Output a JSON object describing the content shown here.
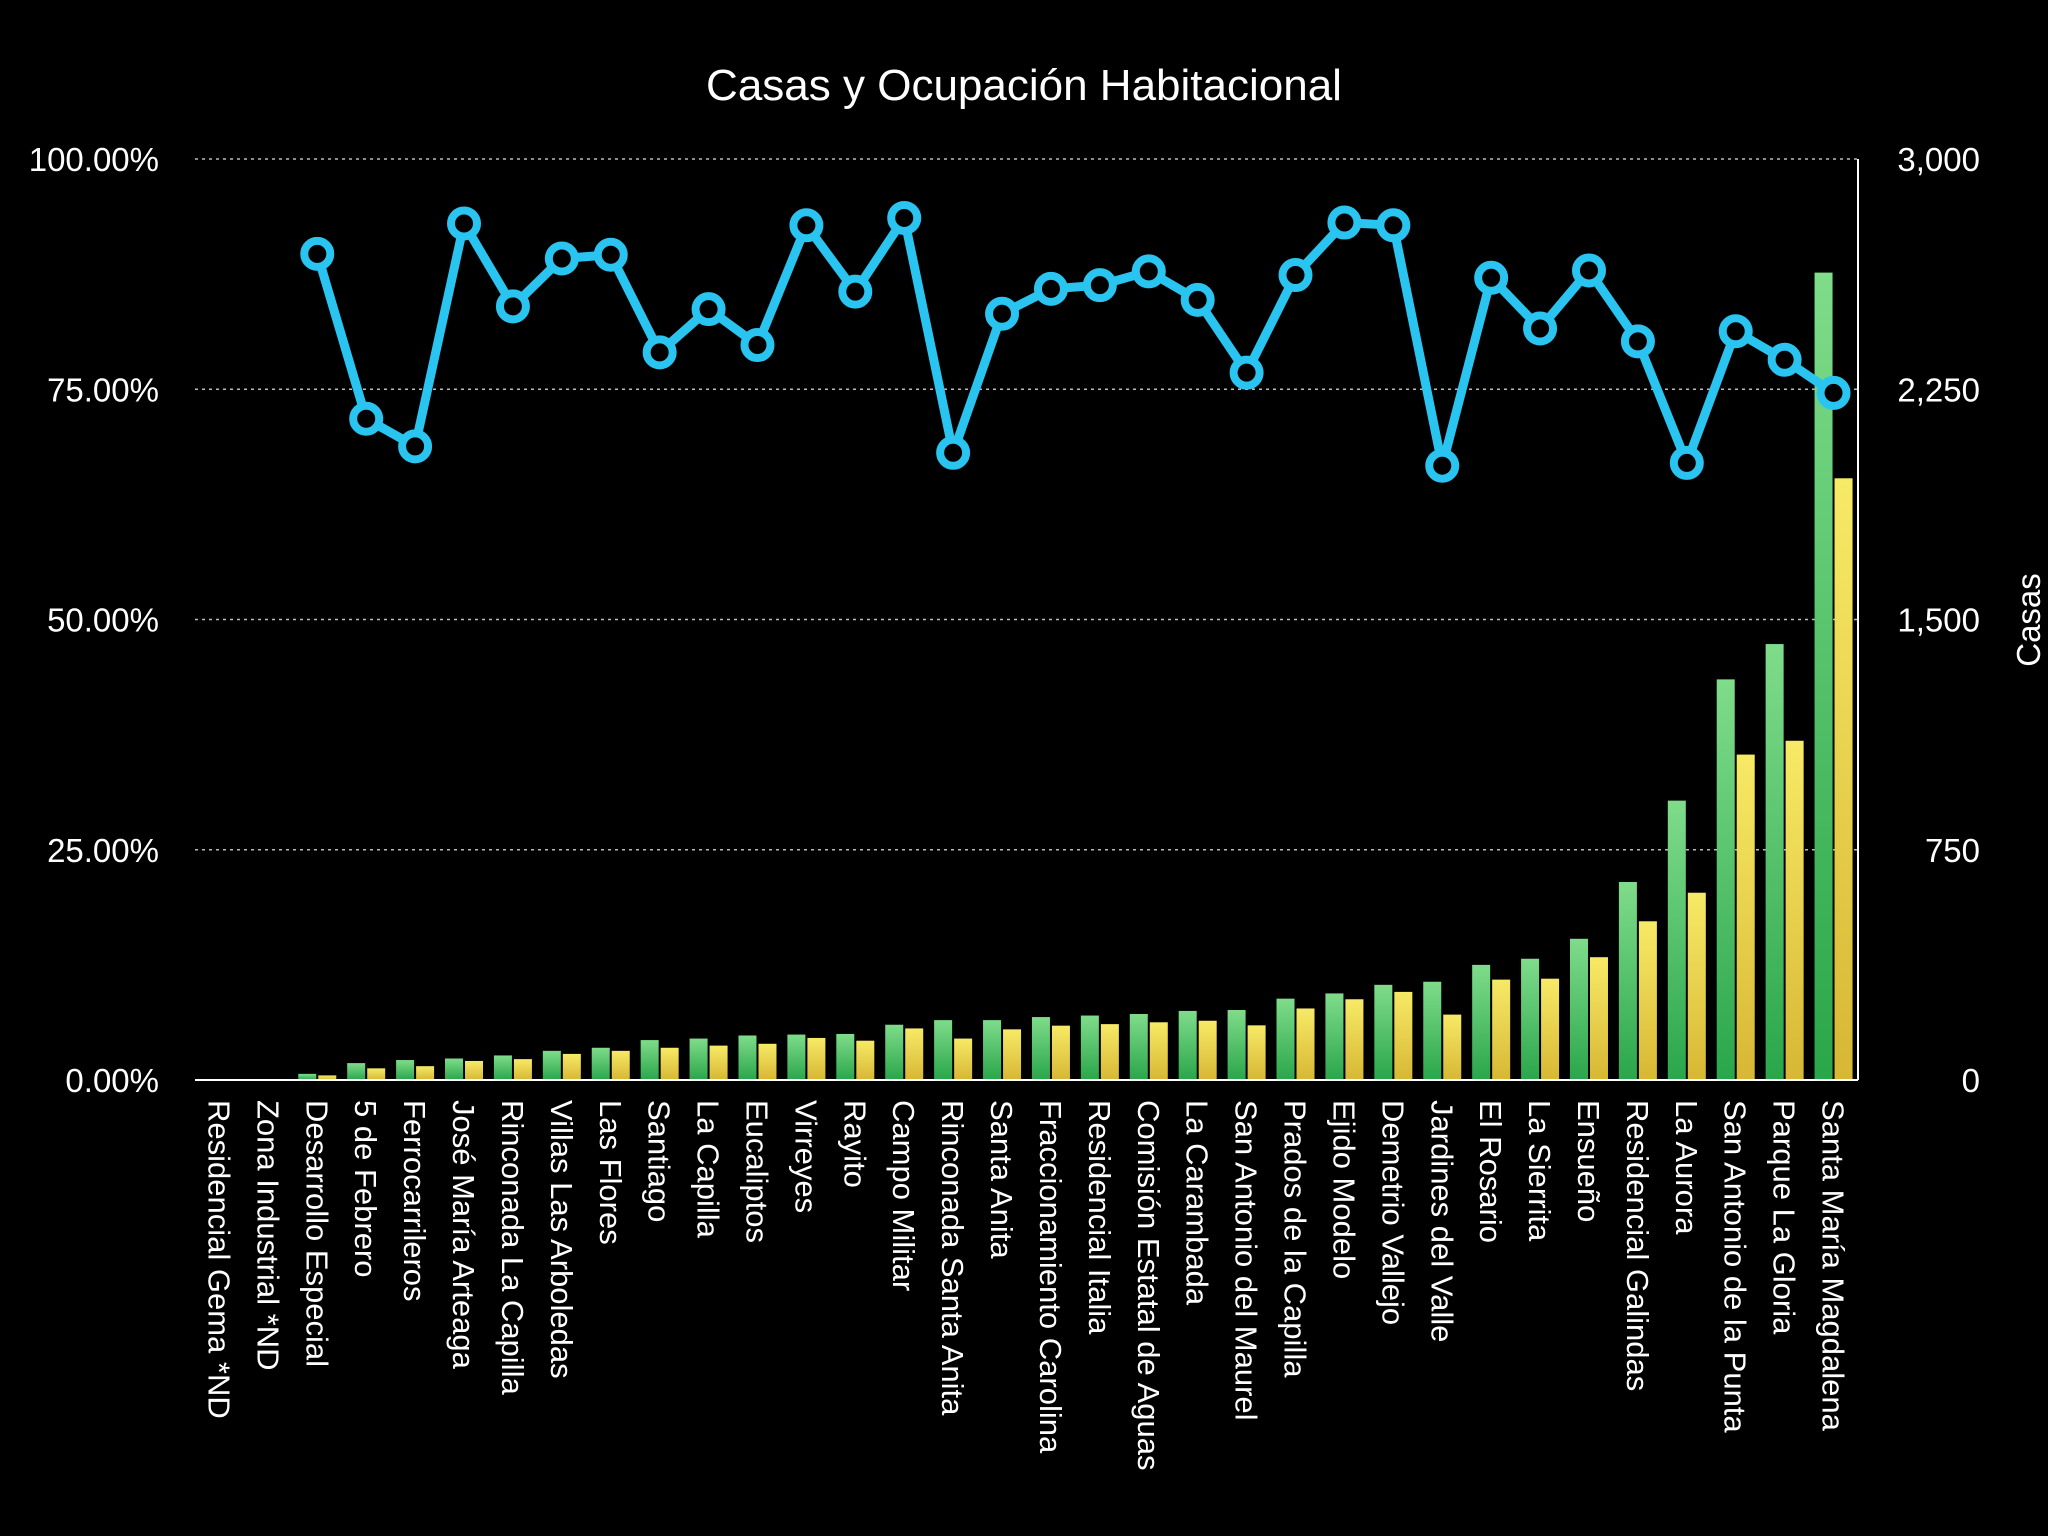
{
  "chart_data": {
    "type": "bar",
    "title": "Casas y Ocupación Habitacional",
    "xlabel": "",
    "ylabel": "",
    "y2label": "Casas",
    "ylim": [
      0,
      100
    ],
    "y2lim": [
      0,
      3000
    ],
    "yticks": [
      "0.00%",
      "25.00%",
      "50.00%",
      "75.00%",
      "100.00%"
    ],
    "y2ticks": [
      "0",
      "750",
      "1,500",
      "2,250",
      "3,000"
    ],
    "grid": true,
    "colors": {
      "background": "#000000",
      "bar_green": "#3cbf5a",
      "bar_yellow": "#e8d84a",
      "line": "#29c4f0"
    },
    "categories": [
      "Residencial Gema *ND",
      "Zona Industrial *ND",
      "Desarrollo Especial",
      "5 de Febrero",
      "Ferrocarrileros",
      "José María Arteaga",
      "Rinconada La Capilla",
      "Villas Las Arboledas",
      "Las Flores",
      "Santiago",
      "La Capilla",
      "Eucaliptos",
      "Virreyes",
      "Rayito",
      "Campo Militar",
      "Rinconada Santa Anita",
      "Santa Anita",
      "Fraccionamiento Carolina",
      "Residencial Italia",
      "Comisión Estatal de Aguas",
      "La Carambada",
      "San Antonio del Maurel",
      "Prados de la Capilla",
      "Ejido Modelo",
      "Demetrio Vallejo",
      "Jardines del Valle",
      "El Rosario",
      "La Sierrita",
      "Ensueño",
      "Residencial Galindas",
      "La Aurora",
      "San Antonio de la Punta",
      "Parque La Gloria",
      "Santa María Magdalena"
    ],
    "series": [
      {
        "kind": "bar",
        "axis": "right",
        "color": "#3cbf5a",
        "values": [
          0,
          0,
          20,
          55,
          65,
          70,
          80,
          95,
          105,
          130,
          135,
          145,
          148,
          150,
          180,
          195,
          195,
          205,
          210,
          215,
          225,
          228,
          265,
          282,
          310,
          320,
          375,
          395,
          460,
          645,
          910,
          1305,
          1420,
          2630
        ]
      },
      {
        "kind": "bar",
        "axis": "right",
        "color": "#e8d84a",
        "values": [
          0,
          0,
          15,
          38,
          45,
          62,
          68,
          85,
          95,
          105,
          112,
          118,
          137,
          128,
          168,
          135,
          165,
          177,
          182,
          188,
          193,
          178,
          233,
          263,
          287,
          213,
          327,
          330,
          400,
          517,
          610,
          1060,
          1105,
          1960
        ]
      },
      {
        "kind": "line",
        "axis": "left",
        "color": "#29c4f0",
        "values": [
          null,
          null,
          89.7,
          71.8,
          68.8,
          93.0,
          84.0,
          89.2,
          89.6,
          79.0,
          83.7,
          79.8,
          92.8,
          85.6,
          93.6,
          68.1,
          83.2,
          85.9,
          86.3,
          87.8,
          84.7,
          76.8,
          87.4,
          93.1,
          92.8,
          66.7,
          87.1,
          81.6,
          87.9,
          80.2,
          67.0,
          81.3,
          78.2,
          74.6
        ]
      }
    ]
  }
}
